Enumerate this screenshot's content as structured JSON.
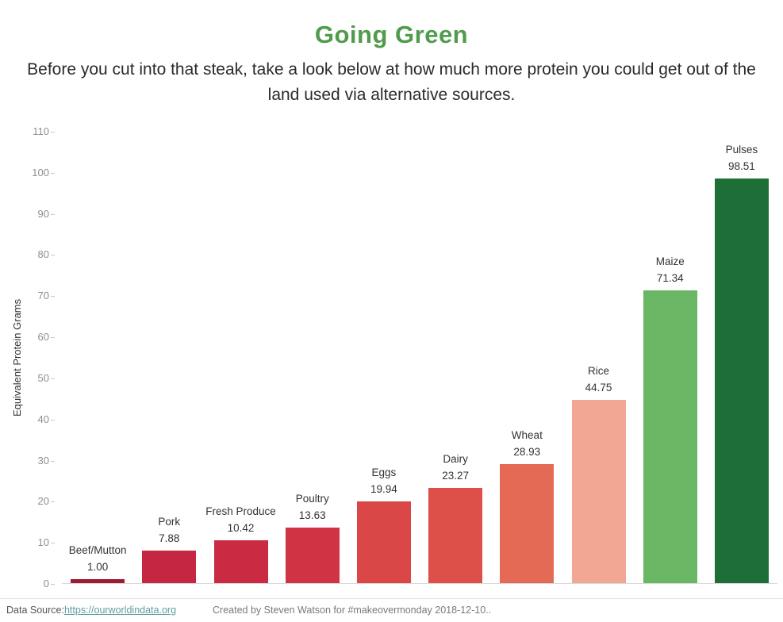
{
  "header": {
    "title": "Going Green",
    "subtitle": "Before you cut into that steak, take a look below at how much more protein you could get out of the land used via alternative sources."
  },
  "chart_data": {
    "type": "bar",
    "title": "Going Green",
    "xlabel": "",
    "ylabel": "Equivalent Protein Grams",
    "ylim": [
      0,
      110
    ],
    "yticks": [
      0,
      10,
      20,
      30,
      40,
      50,
      60,
      70,
      80,
      90,
      100,
      110
    ],
    "grid": false,
    "legend": false,
    "categories": [
      "Beef/Mutton",
      "Pork",
      "Fresh Produce",
      "Poultry",
      "Eggs",
      "Dairy",
      "Wheat",
      "Rice",
      "Maize",
      "Pulses"
    ],
    "values": [
      1.0,
      7.88,
      10.42,
      13.63,
      19.94,
      23.27,
      28.93,
      44.75,
      71.34,
      98.51
    ],
    "value_labels": [
      "1.00",
      "7.88",
      "10.42",
      "13.63",
      "19.94",
      "23.27",
      "28.93",
      "44.75",
      "71.34",
      "98.51"
    ],
    "bar_colors": [
      "#9e1c33",
      "#c52642",
      "#ca2a42",
      "#d03344",
      "#d94747",
      "#dd5049",
      "#e56a56",
      "#f2a793",
      "#69b764",
      "#1e6e37"
    ]
  },
  "footer": {
    "datasource_label": "Data Source: ",
    "datasource_link": "https://ourworldindata.org",
    "credit": "Created by Steven Watson for #makeovermonday 2018-12-10.."
  },
  "colors": {
    "title_green": "#509b4c",
    "link_teal": "#5f9ea0"
  }
}
